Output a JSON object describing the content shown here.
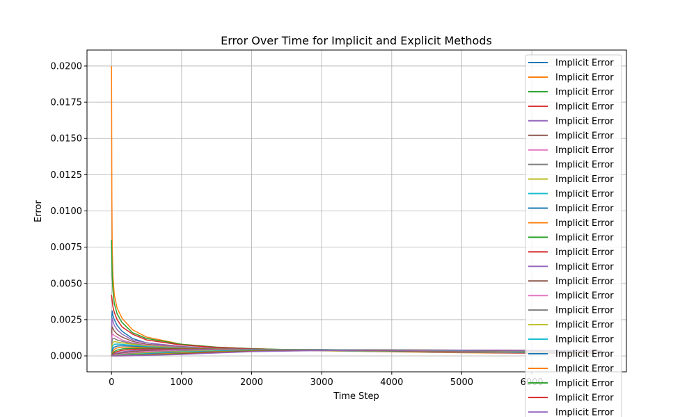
{
  "chart_data": {
    "type": "line",
    "title": "Error Over Time for Implicit and Explicit Methods",
    "xlabel": "Time Step",
    "ylabel": "Error",
    "xlim": [
      -350,
      7350
    ],
    "ylim": [
      -0.0011,
      0.0211
    ],
    "xticks": [
      0,
      1000,
      2000,
      3000,
      4000,
      5000,
      6000
    ],
    "xtick_labels": [
      "0",
      "1000",
      "2000",
      "3000",
      "4000",
      "5000",
      "6000"
    ],
    "yticks": [
      0.0,
      0.0025,
      0.005,
      0.0075,
      0.01,
      0.0125,
      0.015,
      0.0175,
      0.02
    ],
    "ytick_labels": [
      "0.0000",
      "0.0025",
      "0.0050",
      "0.0075",
      "0.0100",
      "0.0125",
      "0.0150",
      "0.0175",
      "0.0200"
    ],
    "grid": true,
    "legend_position": "upper-right",
    "palette": [
      "#1f77b4",
      "#ff7f0e",
      "#2ca02c",
      "#d62728",
      "#9467bd",
      "#8c564b",
      "#e377c2",
      "#7f7f7f",
      "#bcbd22",
      "#17becf"
    ],
    "x": [
      0,
      5,
      10,
      20,
      40,
      80,
      150,
      300,
      500,
      1000,
      1500,
      2000,
      3000,
      4000,
      5000,
      6000,
      7000
    ],
    "series": [
      {
        "name": "Implicit Error",
        "values": [
          0.0,
          0.0028,
          0.0031,
          0.0028,
          0.0025,
          0.0021,
          0.0017,
          0.0012,
          0.0009,
          0.0006,
          0.0005,
          0.00045,
          0.0004,
          0.00035,
          0.0003,
          0.00025,
          0.0002
        ]
      },
      {
        "name": "Implicit Error",
        "values": [
          0.02,
          0.011,
          0.0075,
          0.0055,
          0.0042,
          0.0033,
          0.0026,
          0.0018,
          0.0013,
          0.0008,
          0.0006,
          0.0005,
          0.00035,
          0.00028,
          0.00022,
          0.00018,
          0.00015
        ]
      },
      {
        "name": "Implicit Error",
        "values": [
          0.008,
          0.0065,
          0.0055,
          0.0045,
          0.0036,
          0.0029,
          0.0023,
          0.0016,
          0.0012,
          0.0008,
          0.0006,
          0.0005,
          0.00038,
          0.0003,
          0.00024,
          0.0002,
          0.00016
        ]
      },
      {
        "name": "Implicit Error",
        "values": [
          0.0042,
          0.004,
          0.0038,
          0.0034,
          0.003,
          0.0025,
          0.002,
          0.0015,
          0.0011,
          0.00075,
          0.00058,
          0.00048,
          0.00037,
          0.0003,
          0.00024,
          0.00019,
          0.00015
        ]
      },
      {
        "name": "Implicit Error",
        "values": [
          0.0,
          0.0025,
          0.0026,
          0.0024,
          0.0021,
          0.0018,
          0.0015,
          0.0011,
          0.0009,
          0.00065,
          0.00052,
          0.00045,
          0.00036,
          0.0003,
          0.00025,
          0.0002,
          0.00017
        ]
      },
      {
        "name": "Implicit Error",
        "values": [
          0.0,
          0.0018,
          0.002,
          0.0019,
          0.0017,
          0.0015,
          0.0013,
          0.001,
          0.0008,
          0.0006,
          0.0005,
          0.00044,
          0.00036,
          0.0003,
          0.00025,
          0.00021,
          0.00017
        ]
      },
      {
        "name": "Implicit Error",
        "values": [
          0.0,
          0.0012,
          0.0015,
          0.0015,
          0.0014,
          0.0013,
          0.0011,
          0.0009,
          0.00075,
          0.00058,
          0.00049,
          0.00043,
          0.00036,
          0.0003,
          0.00026,
          0.00022,
          0.00018
        ]
      },
      {
        "name": "Implicit Error",
        "values": [
          0.0,
          0.0008,
          0.0011,
          0.0012,
          0.0012,
          0.0011,
          0.001,
          0.00085,
          0.0007,
          0.00056,
          0.00048,
          0.00043,
          0.00036,
          0.00031,
          0.00027,
          0.00023,
          0.00019
        ]
      },
      {
        "name": "Implicit Error",
        "values": [
          0.0,
          0.0005,
          0.0008,
          0.0009,
          0.001,
          0.00095,
          0.0009,
          0.0008,
          0.00068,
          0.00055,
          0.00048,
          0.00043,
          0.00037,
          0.00032,
          0.00028,
          0.00024,
          0.0002
        ]
      },
      {
        "name": "Implicit Error",
        "values": [
          0.0,
          0.0003,
          0.0005,
          0.0007,
          0.0008,
          0.00082,
          0.0008,
          0.00072,
          0.00064,
          0.00053,
          0.00047,
          0.00043,
          0.00038,
          0.00033,
          0.00029,
          0.00025,
          0.00021
        ]
      },
      {
        "name": "Implicit Error",
        "values": [
          0.0,
          0.0002,
          0.0003,
          0.0005,
          0.0006,
          0.00068,
          0.0007,
          0.00066,
          0.0006,
          0.00052,
          0.00047,
          0.00044,
          0.00039,
          0.00034,
          0.0003,
          0.00026,
          0.00022
        ]
      },
      {
        "name": "Implicit Error",
        "values": [
          0.0,
          0.0001,
          0.0002,
          0.0003,
          0.00045,
          0.00055,
          0.0006,
          0.0006,
          0.00056,
          0.0005,
          0.00047,
          0.00044,
          0.0004,
          0.00035,
          0.00031,
          0.00027,
          0.00023
        ]
      },
      {
        "name": "Implicit Error",
        "values": [
          0.0,
          5e-05,
          0.0001,
          0.0002,
          0.0003,
          0.0004,
          0.00048,
          0.00052,
          0.00052,
          0.00049,
          0.00047,
          0.00045,
          0.00041,
          0.00036,
          0.00032,
          0.00028,
          0.00024
        ]
      },
      {
        "name": "Implicit Error",
        "values": [
          0.0,
          3e-05,
          6e-05,
          0.00012,
          0.0002,
          0.0003,
          0.00038,
          0.00045,
          0.00047,
          0.00047,
          0.00046,
          0.00045,
          0.00042,
          0.00037,
          0.00033,
          0.00029,
          0.00025
        ]
      },
      {
        "name": "Implicit Error",
        "values": [
          0.0,
          2e-05,
          4e-05,
          8e-05,
          0.00013,
          0.0002,
          0.00028,
          0.00037,
          0.00041,
          0.00044,
          0.00045,
          0.00045,
          0.00043,
          0.00038,
          0.00034,
          0.0003,
          0.00026
        ]
      },
      {
        "name": "Implicit Error",
        "values": [
          0.0,
          1e-05,
          2e-05,
          5e-05,
          8e-05,
          0.00014,
          0.0002,
          0.0003,
          0.00036,
          0.00041,
          0.00043,
          0.00044,
          0.00043,
          0.00039,
          0.00035,
          0.00031,
          0.00027
        ]
      },
      {
        "name": "Implicit Error",
        "values": [
          0.0,
          0.0,
          1e-05,
          3e-05,
          5e-05,
          9e-05,
          0.00014,
          0.00023,
          0.0003,
          0.00038,
          0.00041,
          0.00043,
          0.00043,
          0.0004,
          0.00036,
          0.00032,
          0.00028
        ]
      },
      {
        "name": "Implicit Error",
        "values": [
          0.0,
          0.0,
          0.0,
          2e-05,
          3e-05,
          6e-05,
          0.0001,
          0.00017,
          0.00024,
          0.00034,
          0.00039,
          0.00042,
          0.00043,
          0.0004,
          0.00037,
          0.00033,
          0.00029
        ]
      },
      {
        "name": "Implicit Error",
        "values": [
          0.0,
          0.0,
          0.0,
          1e-05,
          2e-05,
          4e-05,
          7e-05,
          0.00013,
          0.0002,
          0.0003,
          0.00036,
          0.0004,
          0.00042,
          0.00041,
          0.00038,
          0.00034,
          0.0003
        ]
      },
      {
        "name": "Implicit Error",
        "values": [
          0.0,
          0.0,
          0.0,
          0.0,
          1e-05,
          2e-05,
          5e-05,
          9e-05,
          0.00016,
          0.00027,
          0.00034,
          0.00039,
          0.00042,
          0.00041,
          0.00038,
          0.00035,
          0.00031
        ]
      },
      {
        "name": "Implicit Error",
        "values": [
          0.0,
          0.0,
          0.0,
          0.0,
          0.0,
          1e-05,
          3e-05,
          6e-05,
          0.00012,
          0.00023,
          0.00031,
          0.00037,
          0.00041,
          0.00041,
          0.00039,
          0.00036,
          0.00032
        ]
      },
      {
        "name": "Implicit Error",
        "values": [
          0.0,
          0.0,
          0.0,
          0.0,
          0.0,
          0.0,
          2e-05,
          4e-05,
          9e-05,
          0.0002,
          0.00029,
          0.00035,
          0.0004,
          0.00041,
          0.0004,
          0.00037,
          0.00033
        ]
      },
      {
        "name": "Implicit Error",
        "values": [
          0.0,
          0.0,
          0.0,
          0.0,
          0.0,
          0.0,
          1e-05,
          3e-05,
          6e-05,
          0.00016,
          0.00026,
          0.00033,
          0.00039,
          0.00041,
          0.0004,
          0.00037,
          0.00034
        ]
      },
      {
        "name": "Implicit Error",
        "values": [
          0.0,
          0.0,
          0.0,
          0.0,
          0.0,
          0.0,
          0.0,
          2e-05,
          4e-05,
          0.00013,
          0.00023,
          0.00031,
          0.00038,
          0.0004,
          0.0004,
          0.00038,
          0.00035
        ]
      },
      {
        "name": "Implicit Error",
        "values": [
          0.0,
          0.0,
          0.0,
          0.0,
          0.0,
          0.0,
          0.0,
          1e-05,
          3e-05,
          0.0001,
          0.0002,
          0.00029,
          0.00037,
          0.0004,
          0.0004,
          0.00038,
          0.00036
        ]
      }
    ]
  }
}
